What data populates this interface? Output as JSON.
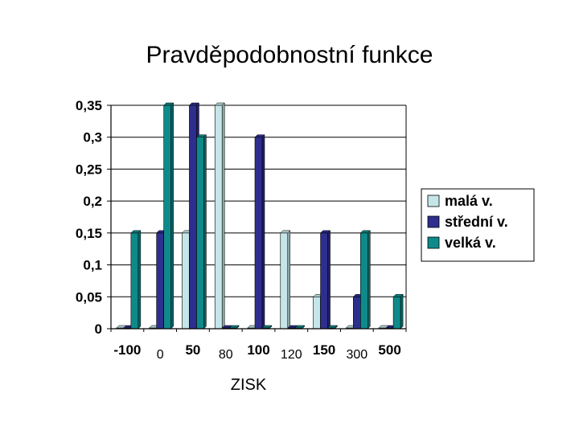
{
  "chart_data": {
    "type": "bar",
    "title": "Pravděpodobnostní funkce",
    "xlabel": "ZISK",
    "ylabel": "",
    "ylim": [
      0,
      0.35
    ],
    "yticks": [
      "0",
      "0,05",
      "0,1",
      "0,15",
      "0,2",
      "0,25",
      "0,3",
      "0,35"
    ],
    "grid": true,
    "legend_position": "right",
    "categories": [
      "-100",
      "0",
      "50",
      "80",
      "100",
      "120",
      "150",
      "300",
      "500"
    ],
    "series": [
      {
        "name": "malá v.",
        "color": "#C4E6E8",
        "values": [
          0,
          0,
          0.15,
          0.35,
          0,
          0.15,
          0.05,
          0,
          0
        ]
      },
      {
        "name": "střední v.",
        "color": "#2E2E8F",
        "values": [
          0,
          0.15,
          0.35,
          0,
          0.3,
          0,
          0.15,
          0.05,
          0
        ]
      },
      {
        "name": "velká v.",
        "color": "#0E8A8A",
        "values": [
          0.15,
          0.35,
          0.3,
          0,
          0,
          0,
          0,
          0.15,
          0.05
        ]
      }
    ]
  }
}
